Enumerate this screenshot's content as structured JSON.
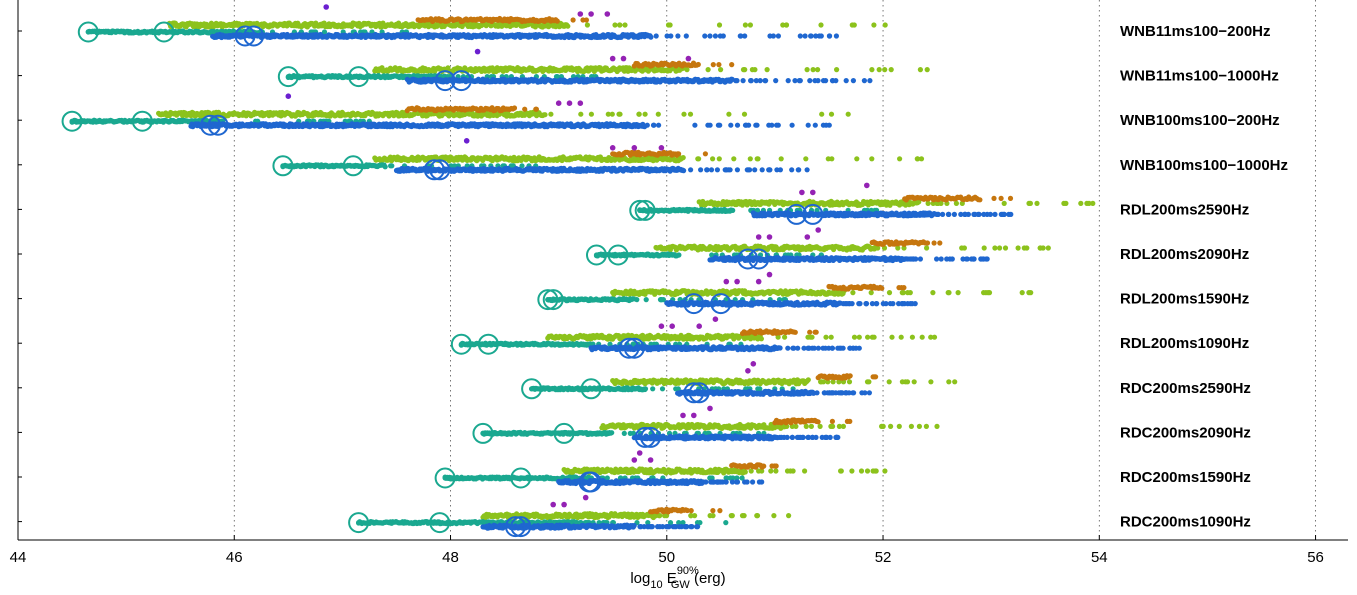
{
  "chart_data": {
    "type": "scatter",
    "title": "",
    "xlabel": {
      "prefix": "log",
      "sub1": "10",
      "main": " E",
      "sup": "90%",
      "sub2": "GW",
      "suffix": " (erg)"
    },
    "ylabel": "",
    "xlim": [
      44,
      56.3
    ],
    "xticks": [
      "44",
      "46",
      "48",
      "50",
      "52",
      "54",
      "56"
    ],
    "xtick_values": [
      44,
      46,
      48,
      50,
      52,
      54,
      56
    ],
    "grid": "vertical dotted",
    "legend": "none",
    "colors": {
      "teal": "#1aa890",
      "blue": "#1f67d0",
      "lime": "#8cc21c",
      "orange": "#c6760e",
      "purple": "#9422b4",
      "violet": "#6b1fd0"
    },
    "rows": [
      {
        "label": "WNB11ms100−200Hz",
        "teal": {
          "x1": 44.65,
          "x2": 46.25,
          "circles": [
            44.65,
            45.35
          ]
        },
        "blue": {
          "x1": 45.8,
          "x2": 51.6,
          "circles": [
            46.1,
            46.18
          ]
        },
        "lime": {
          "x1": 45.4,
          "x2": 52.1
        },
        "orange": {
          "x1": 47.7,
          "x2": 49.0
        },
        "purple": {
          "x": [
            49.2,
            49.3,
            49.45,
            46.85
          ]
        }
      },
      {
        "label": "WNB11ms100−1000Hz",
        "teal": {
          "x1": 46.5,
          "x2": 48.0,
          "circles": [
            46.5,
            47.15
          ]
        },
        "blue": {
          "x1": 47.6,
          "x2": 51.9,
          "circles": [
            47.95,
            48.1
          ]
        },
        "lime": {
          "x1": 47.3,
          "x2": 52.5
        },
        "orange": {
          "x1": 49.7,
          "x2": 50.3
        },
        "purple": {
          "x": [
            49.5,
            49.6,
            50.2,
            48.25
          ]
        }
      },
      {
        "label": "WNB100ms100−200Hz",
        "teal": {
          "x1": 44.5,
          "x2": 45.9,
          "circles": [
            44.5,
            45.15
          ]
        },
        "blue": {
          "x1": 45.6,
          "x2": 51.6,
          "circles": [
            45.78,
            45.85
          ]
        },
        "lime": {
          "x1": 45.3,
          "x2": 51.8
        },
        "orange": {
          "x1": 47.6,
          "x2": 48.6
        },
        "purple": {
          "x": [
            49.0,
            49.1,
            49.2,
            46.5
          ]
        }
      },
      {
        "label": "WNB100ms100−1000Hz",
        "teal": {
          "x1": 46.45,
          "x2": 47.4,
          "circles": [
            46.45,
            47.1
          ]
        },
        "blue": {
          "x1": 47.5,
          "x2": 51.3,
          "circles": [
            47.85,
            47.9
          ]
        },
        "lime": {
          "x1": 47.3,
          "x2": 52.5
        },
        "orange": {
          "x1": 49.5,
          "x2": 50.1
        },
        "purple": {
          "x": [
            49.5,
            49.7,
            49.95,
            48.15
          ]
        }
      },
      {
        "label": "RDL200ms2590Hz",
        "teal": {
          "x1": 49.75,
          "x2": 50.6,
          "circles": [
            49.75,
            49.8
          ]
        },
        "blue": {
          "x1": 50.8,
          "x2": 53.2,
          "circles": [
            51.2,
            51.35
          ]
        },
        "lime": {
          "x1": 50.3,
          "x2": 54.0
        },
        "orange": {
          "x1": 52.2,
          "x2": 52.9
        },
        "purple": {
          "x": [
            51.25,
            51.35,
            51.85
          ]
        }
      },
      {
        "label": "RDL200ms2090Hz",
        "teal": {
          "x1": 49.35,
          "x2": 50.1,
          "circles": [
            49.35,
            49.55
          ]
        },
        "blue": {
          "x1": 50.4,
          "x2": 53.0,
          "circles": [
            50.75,
            50.85
          ]
        },
        "lime": {
          "x1": 49.9,
          "x2": 53.6
        },
        "orange": {
          "x1": 51.9,
          "x2": 52.4
        },
        "purple": {
          "x": [
            50.85,
            50.95,
            51.3,
            51.4
          ]
        }
      },
      {
        "label": "RDL200ms1590Hz",
        "teal": {
          "x1": 48.9,
          "x2": 49.7,
          "circles": [
            48.9,
            48.95
          ]
        },
        "blue": {
          "x1": 50.0,
          "x2": 52.3,
          "circles": [
            50.25,
            50.5
          ]
        },
        "lime": {
          "x1": 49.5,
          "x2": 53.4
        },
        "orange": {
          "x1": 51.5,
          "x2": 52.0
        },
        "purple": {
          "x": [
            50.55,
            50.65,
            50.85,
            50.95
          ]
        }
      },
      {
        "label": "RDL200ms1090Hz",
        "teal": {
          "x1": 48.1,
          "x2": 49.3,
          "circles": [
            48.1,
            48.35
          ]
        },
        "blue": {
          "x1": 49.3,
          "x2": 51.8,
          "circles": [
            49.65,
            49.7
          ]
        },
        "lime": {
          "x1": 48.9,
          "x2": 52.5
        },
        "orange": {
          "x1": 50.7,
          "x2": 51.2
        },
        "purple": {
          "x": [
            49.95,
            50.05,
            50.3,
            50.45
          ]
        }
      },
      {
        "label": "RDC200ms2590Hz",
        "teal": {
          "x1": 48.75,
          "x2": 49.8,
          "circles": [
            48.75,
            49.3
          ]
        },
        "blue": {
          "x1": 50.1,
          "x2": 51.9,
          "circles": [
            50.25,
            50.3
          ]
        },
        "lime": {
          "x1": 49.5,
          "x2": 52.8
        },
        "orange": {
          "x1": 51.4,
          "x2": 51.7
        },
        "purple": {
          "x": [
            50.75,
            50.8
          ]
        }
      },
      {
        "label": "RDC200ms2090Hz",
        "teal": {
          "x1": 48.3,
          "x2": 49.5,
          "circles": [
            48.3,
            49.05
          ]
        },
        "blue": {
          "x1": 49.7,
          "x2": 51.6,
          "circles": [
            49.8,
            49.85
          ]
        },
        "lime": {
          "x1": 49.4,
          "x2": 52.5
        },
        "orange": {
          "x1": 51.0,
          "x2": 51.4
        },
        "purple": {
          "x": [
            50.15,
            50.25,
            50.4
          ]
        }
      },
      {
        "label": "RDC200ms1590Hz",
        "teal": {
          "x1": 47.95,
          "x2": 49.3,
          "circles": [
            47.95,
            48.65
          ]
        },
        "blue": {
          "x1": 49.0,
          "x2": 50.9,
          "circles": [
            49.28,
            49.3
          ]
        },
        "lime": {
          "x1": 49.05,
          "x2": 52.1
        },
        "orange": {
          "x1": 50.6,
          "x2": 50.9
        },
        "purple": {
          "x": [
            49.7,
            49.85,
            49.75
          ]
        }
      },
      {
        "label": "RDC200ms1090Hz",
        "teal": {
          "x1": 47.15,
          "x2": 49.2,
          "circles": [
            47.15,
            47.9
          ]
        },
        "blue": {
          "x1": 48.3,
          "x2": 50.3,
          "circles": [
            48.6,
            48.65
          ]
        },
        "lime": {
          "x1": 48.3,
          "x2": 51.2
        },
        "orange": {
          "x1": 49.85,
          "x2": 50.2
        },
        "purple": {
          "x": [
            48.95,
            49.05,
            49.25
          ]
        }
      }
    ]
  }
}
